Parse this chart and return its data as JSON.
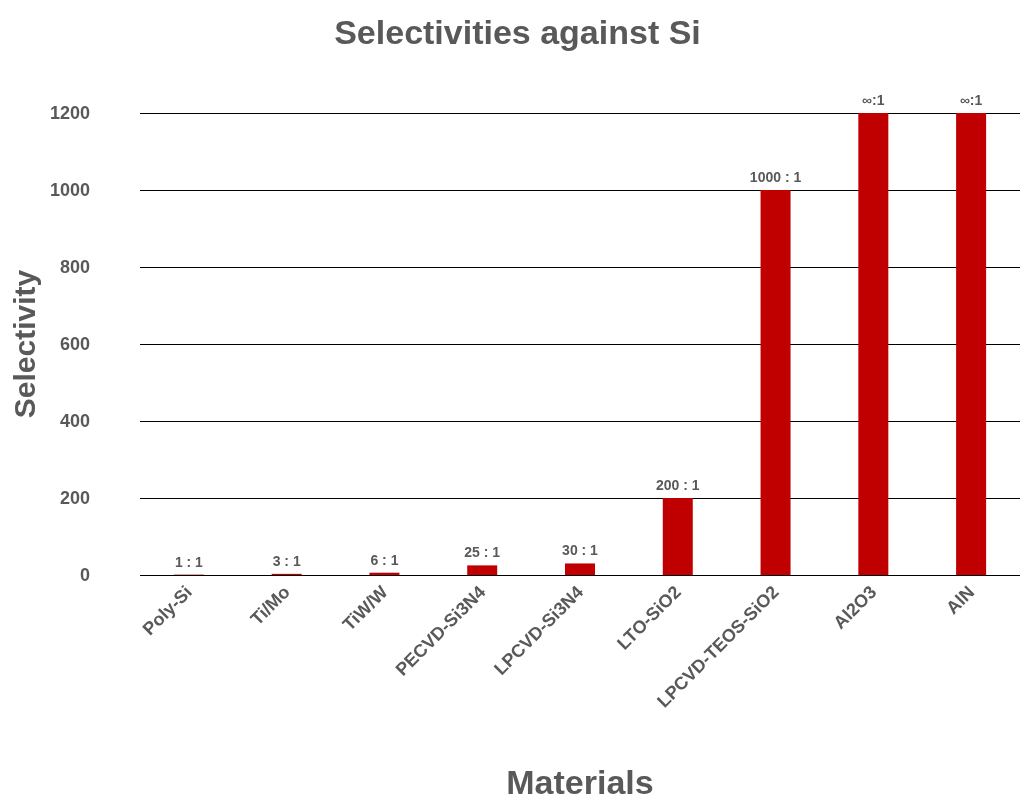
{
  "chart_data": {
    "type": "bar",
    "title": "Selectivities against Si",
    "xlabel": "Materials",
    "ylabel": "Selectivity",
    "categories": [
      "Poly-Si",
      "Ti/Mo",
      "TiW/W",
      "PECVD-Si3N4",
      "LPCVD-Si3N4",
      "LTO-SiO2",
      "LPCVD-TEOS-SiO2",
      "Al2O3",
      "AlN"
    ],
    "values": [
      1,
      3,
      6,
      25,
      30,
      200,
      1000,
      1200,
      1200
    ],
    "value_labels": [
      "1 : 1",
      "3 : 1",
      "6 : 1",
      "25 : 1",
      "30 : 1",
      "200 : 1",
      "1000 : 1",
      null,
      null
    ],
    "annotations": [
      {
        "text": "∞:1",
        "x": "Al2O3",
        "y": 1200
      },
      {
        "text": "∞:1",
        "x": "AlN",
        "y": 1200
      }
    ],
    "color": "#c00000",
    "ylim": [
      0,
      1200
    ],
    "yticks": [
      0,
      200,
      400,
      600,
      800,
      1000,
      1200
    ],
    "grid": "y"
  }
}
